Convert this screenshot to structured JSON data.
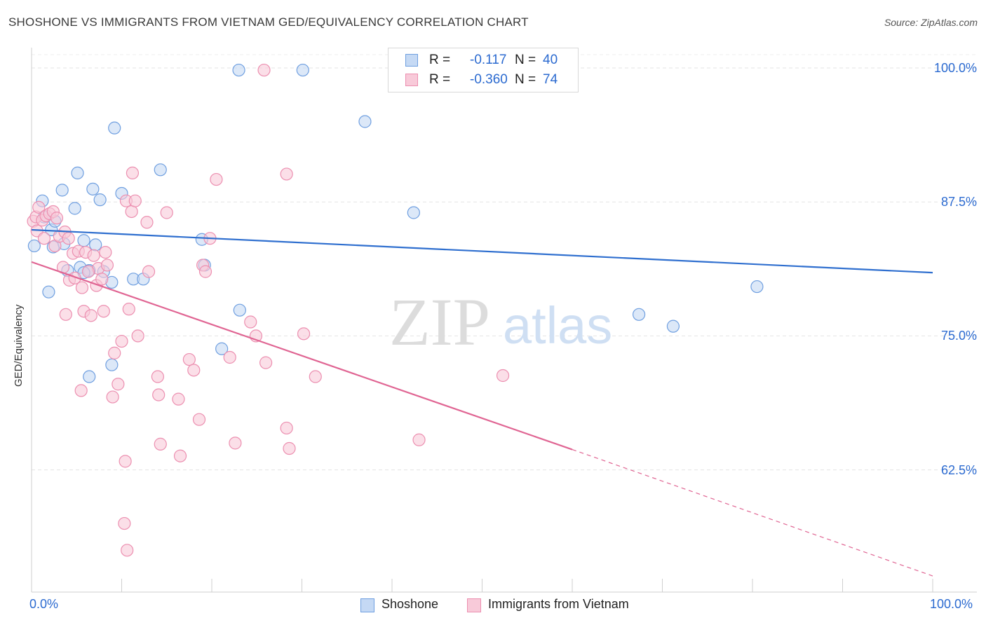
{
  "header": {
    "title": "SHOSHONE VS IMMIGRANTS FROM VIETNAM GED/EQUIVALENCY CORRELATION CHART",
    "source": "Source: ZipAtlas.com"
  },
  "watermark": {
    "zip": "ZIP",
    "atlas": "atlas"
  },
  "legend": {
    "rows": [
      {
        "r_label": "R =",
        "r_value": "-0.117",
        "n_label": "N =",
        "n_value": "40",
        "color": "#7aaae8"
      },
      {
        "r_label": "R =",
        "r_value": "-0.360",
        "n_label": "N =",
        "n_value": "74",
        "color": "#f09cba"
      }
    ]
  },
  "bottom_legend": {
    "shoshone": "Shoshone",
    "vietnam": "Immigrants from Vietnam"
  },
  "axes": {
    "ylabel": "GED/Equivalency",
    "x_ticks": {
      "left": "0.0%",
      "right": "100.0%"
    },
    "y_ticks": [
      "100.0%",
      "87.5%",
      "75.0%",
      "62.5%"
    ]
  },
  "colors": {
    "blue_fill": "#c5d9f4",
    "blue_stroke": "#6f9fe0",
    "blue_line": "#2f6fcf",
    "pink_fill": "#f8cad9",
    "pink_stroke": "#ec8fb0",
    "pink_line": "#e06593",
    "tick_text": "#2b6ad0"
  },
  "chart_data": {
    "type": "scatter",
    "title": "SHOSHONE VS IMMIGRANTS FROM VIETNAM GED/EQUIVALENCY CORRELATION CHART",
    "xlabel": "",
    "ylabel": "GED/Equivalency",
    "xlim": [
      0,
      100
    ],
    "ylim": [
      51.5,
      101.5
    ],
    "y_ticks": [
      62.5,
      75.0,
      87.5,
      100.0
    ],
    "grid": true,
    "legend_position": "top-center",
    "series": [
      {
        "name": "Shoshone",
        "r": -0.117,
        "n": 40,
        "trend": {
          "x": [
            0,
            100
          ],
          "y": [
            84.9,
            80.9
          ],
          "dashed_from": null
        },
        "points": [
          [
            0.3,
            83.4
          ],
          [
            1.2,
            87.6
          ],
          [
            2.2,
            84.9
          ],
          [
            3.4,
            88.6
          ],
          [
            5.1,
            90.2
          ],
          [
            6.8,
            88.7
          ],
          [
            7.6,
            87.7
          ],
          [
            9.2,
            94.4
          ],
          [
            10.0,
            88.3
          ],
          [
            14.3,
            90.5
          ],
          [
            1.9,
            79.1
          ],
          [
            2.4,
            83.3
          ],
          [
            3.6,
            83.6
          ],
          [
            4.0,
            81.1
          ],
          [
            4.8,
            86.9
          ],
          [
            5.4,
            81.4
          ],
          [
            5.8,
            83.9
          ],
          [
            6.4,
            81.1
          ],
          [
            7.1,
            83.5
          ],
          [
            8.0,
            81.0
          ],
          [
            8.9,
            80.0
          ],
          [
            11.3,
            80.3
          ],
          [
            12.4,
            80.3
          ],
          [
            6.4,
            81.1
          ],
          [
            23.0,
            99.8
          ],
          [
            30.1,
            99.8
          ],
          [
            37.0,
            95.0
          ],
          [
            42.4,
            86.5
          ],
          [
            18.9,
            84.0
          ],
          [
            19.2,
            81.6
          ],
          [
            23.1,
            77.4
          ],
          [
            21.1,
            73.8
          ],
          [
            8.9,
            72.3
          ],
          [
            6.4,
            71.2
          ],
          [
            1.4,
            86.1
          ],
          [
            2.6,
            85.7
          ],
          [
            80.5,
            79.6
          ],
          [
            67.4,
            77.0
          ],
          [
            71.2,
            75.9
          ],
          [
            5.8,
            80.9
          ]
        ]
      },
      {
        "name": "Immigrants from Vietnam",
        "r": -0.36,
        "n": 74,
        "trend": {
          "x": [
            0,
            60,
            100
          ],
          "y": [
            81.9,
            64.4,
            52.6
          ],
          "dashed_from": 60
        },
        "points": [
          [
            0.2,
            85.7
          ],
          [
            0.5,
            86.1
          ],
          [
            0.8,
            87.0
          ],
          [
            1.2,
            85.8
          ],
          [
            1.6,
            86.2
          ],
          [
            2.0,
            86.4
          ],
          [
            2.4,
            86.6
          ],
          [
            2.8,
            86.0
          ],
          [
            0.6,
            84.8
          ],
          [
            1.4,
            84.1
          ],
          [
            2.6,
            83.4
          ],
          [
            3.1,
            84.3
          ],
          [
            3.7,
            84.7
          ],
          [
            4.1,
            84.1
          ],
          [
            4.6,
            82.7
          ],
          [
            5.2,
            82.9
          ],
          [
            6.0,
            82.8
          ],
          [
            6.9,
            82.5
          ],
          [
            7.4,
            81.3
          ],
          [
            8.2,
            82.8
          ],
          [
            3.5,
            81.4
          ],
          [
            4.2,
            80.2
          ],
          [
            4.8,
            80.4
          ],
          [
            5.6,
            79.5
          ],
          [
            6.3,
            81.0
          ],
          [
            7.2,
            79.7
          ],
          [
            7.8,
            80.3
          ],
          [
            8.4,
            81.6
          ],
          [
            3.8,
            77.0
          ],
          [
            5.8,
            77.3
          ],
          [
            6.6,
            76.9
          ],
          [
            8.0,
            77.3
          ],
          [
            10.0,
            74.5
          ],
          [
            9.2,
            73.4
          ],
          [
            9.6,
            70.5
          ],
          [
            9.0,
            69.3
          ],
          [
            5.5,
            69.9
          ],
          [
            10.4,
            63.3
          ],
          [
            13.0,
            81.0
          ],
          [
            10.8,
            77.5
          ],
          [
            11.8,
            75.0
          ],
          [
            14.0,
            71.2
          ],
          [
            14.1,
            69.5
          ],
          [
            16.3,
            69.1
          ],
          [
            14.3,
            64.9
          ],
          [
            16.5,
            63.8
          ],
          [
            17.5,
            72.8
          ],
          [
            18.0,
            71.8
          ],
          [
            18.6,
            67.2
          ],
          [
            19.0,
            81.6
          ],
          [
            19.3,
            81.0
          ],
          [
            19.8,
            84.1
          ],
          [
            22.0,
            73.0
          ],
          [
            22.6,
            65.0
          ],
          [
            24.9,
            75.0
          ],
          [
            24.3,
            76.3
          ],
          [
            26.0,
            72.5
          ],
          [
            28.3,
            66.4
          ],
          [
            28.6,
            64.5
          ],
          [
            30.2,
            75.2
          ],
          [
            31.5,
            71.2
          ],
          [
            43.0,
            65.3
          ],
          [
            52.3,
            71.3
          ],
          [
            10.5,
            87.6
          ],
          [
            11.1,
            86.6
          ],
          [
            12.8,
            85.6
          ],
          [
            15.0,
            86.5
          ],
          [
            11.5,
            87.6
          ],
          [
            11.2,
            90.2
          ],
          [
            20.5,
            89.6
          ],
          [
            28.3,
            90.1
          ],
          [
            25.8,
            99.8
          ],
          [
            10.3,
            57.5
          ],
          [
            10.6,
            55.0
          ]
        ]
      }
    ]
  }
}
